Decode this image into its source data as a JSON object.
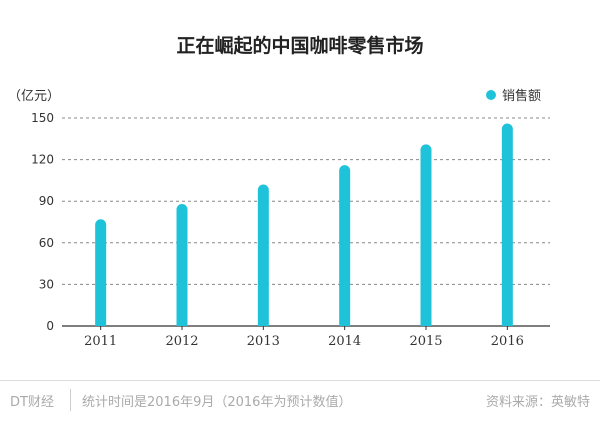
{
  "chart_data": {
    "type": "bar",
    "title": "正在崛起的中国咖啡零售市场",
    "ylabel": "（亿元）",
    "xlabel": "",
    "categories": [
      "2011",
      "2012",
      "2013",
      "2014",
      "2015",
      "2016"
    ],
    "series": [
      {
        "name": "销售额",
        "values": [
          77,
          88,
          102,
          116,
          131,
          146
        ]
      }
    ],
    "ylim": [
      0,
      150
    ],
    "yticks": [
      0,
      30,
      60,
      90,
      120,
      150
    ],
    "grid": true,
    "grid_style": "dashed",
    "legend_position": "top-right",
    "colors": {
      "bar": "#1fc3d9",
      "grid": "#888888",
      "axis": "#333333"
    }
  },
  "footer": {
    "brand": "DT财经",
    "note": "统计时间是2016年9月（2016年为预计数值）",
    "source": "资料来源：英敏特"
  }
}
